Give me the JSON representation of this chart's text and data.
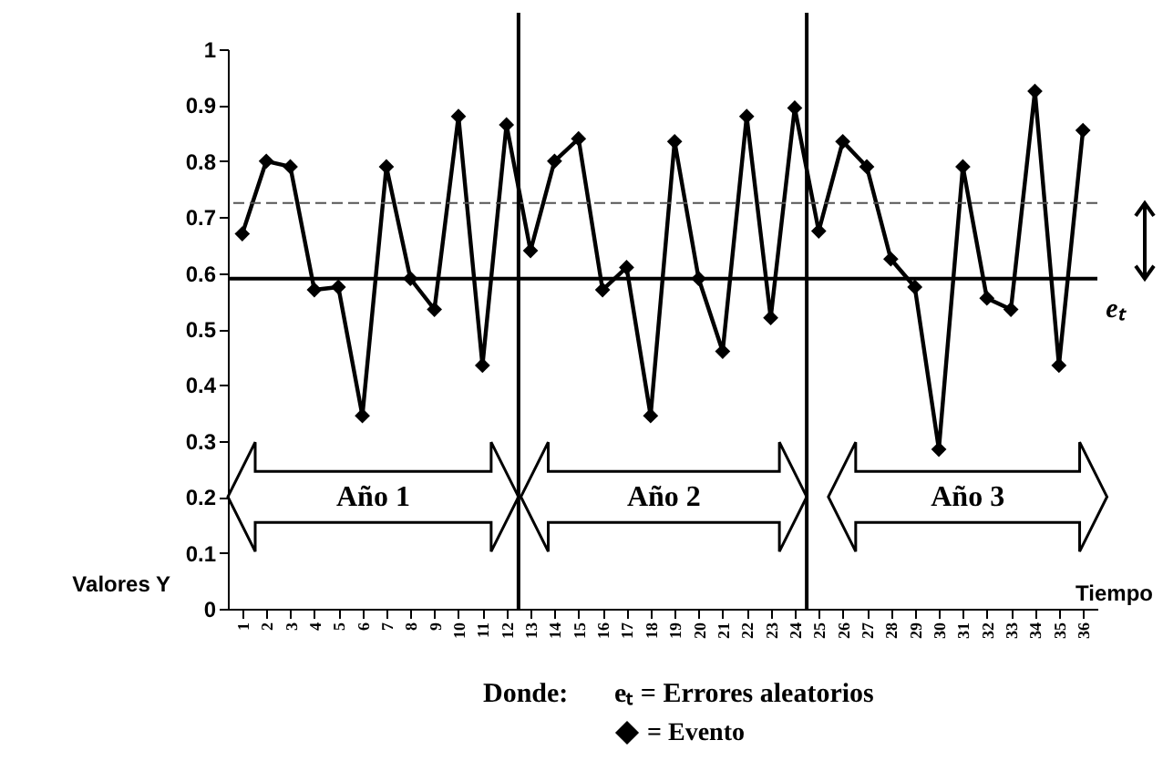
{
  "chart_data": {
    "type": "line",
    "ylabel": "Valores Y",
    "xlabel": "Tiempo",
    "x": [
      1,
      2,
      3,
      4,
      5,
      6,
      7,
      8,
      9,
      10,
      11,
      12,
      13,
      14,
      15,
      16,
      17,
      18,
      19,
      20,
      21,
      22,
      23,
      24,
      25,
      26,
      27,
      28,
      29,
      30,
      31,
      32,
      33,
      34,
      35,
      36
    ],
    "xlim": [
      0.4,
      36.6
    ],
    "xticks": [
      1,
      2,
      3,
      4,
      5,
      6,
      7,
      8,
      9,
      10,
      11,
      12,
      13,
      14,
      15,
      16,
      17,
      18,
      19,
      20,
      21,
      22,
      23,
      24,
      25,
      26,
      27,
      28,
      29,
      30,
      31,
      32,
      33,
      34,
      35,
      36
    ],
    "ylim": [
      0,
      1
    ],
    "yticks": [
      0,
      0.1,
      0.2,
      0.3,
      0.4,
      0.5,
      0.6,
      0.7,
      0.8,
      0.9,
      1
    ],
    "series": [
      {
        "name": "= Evento",
        "color": "#000000",
        "values": [
          0.67,
          0.8,
          0.79,
          0.57,
          0.575,
          0.345,
          0.79,
          0.59,
          0.535,
          0.88,
          0.435,
          0.865,
          0.64,
          0.8,
          0.84,
          0.57,
          0.61,
          0.345,
          0.835,
          0.59,
          0.46,
          0.88,
          0.52,
          0.895,
          0.675,
          0.835,
          0.79,
          0.625,
          0.575,
          0.285,
          0.79,
          0.555,
          0.535,
          0.925,
          0.435,
          0.855
        ]
      }
    ],
    "ref_lines": [
      {
        "axis": "y",
        "value": 0.59,
        "color": "#000000"
      },
      {
        "axis": "y",
        "value": 0.725,
        "color": "#555555",
        "line_style": "dashed"
      },
      {
        "axis": "x",
        "value": 12.5,
        "color": "#000000"
      },
      {
        "axis": "x",
        "value": 24.5,
        "color": "#000000"
      }
    ],
    "annotations": [
      "eₜ",
      "Donde:",
      "eₜ = Errores aleatorios",
      "Año 1",
      "Año 2",
      "Año 3"
    ],
    "marker": "diamond",
    "line_style": "solid",
    "legend": "bottom",
    "grid": false
  }
}
